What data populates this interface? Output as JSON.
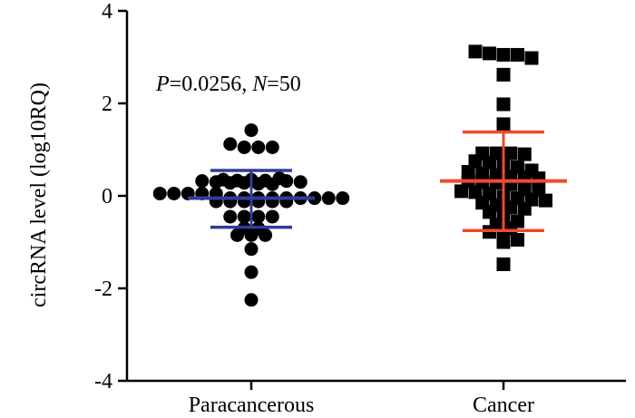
{
  "chart_data": {
    "type": "scatter",
    "subtype": "dot-plot-with-mean-and-sd",
    "ylabel": "circRNA level (log10RQ)",
    "ylim": [
      -4,
      4
    ],
    "yticks": [
      {
        "value": 4,
        "label": "4"
      },
      {
        "value": 2,
        "label": "2"
      },
      {
        "value": 0,
        "label": "0"
      },
      {
        "value": -2,
        "label": "-2"
      },
      {
        "value": -4,
        "label": "-4"
      }
    ],
    "annotation": {
      "p_label": "P",
      "p_value": "=0.0256, ",
      "n_label": "N",
      "n_value": "=50"
    },
    "groups": [
      {
        "name": "Paracancerous",
        "marker": "circle",
        "marker_color": "#000000",
        "summary_color": "#2e3d9a",
        "mean": -0.05,
        "sd_upper": 0.55,
        "sd_lower": -0.68,
        "points": [
          1.42,
          1.12,
          1.05,
          1.05,
          1.05,
          0.35,
          0.33,
          0.32,
          0.3,
          0.28,
          0.28,
          0.26,
          0.25,
          0.35,
          0.33,
          0.32,
          0.3,
          0.38,
          0.05,
          0.05,
          0.05,
          0.05,
          0.05,
          -0.05,
          -0.05,
          -0.05,
          -0.05,
          -0.05,
          -0.05,
          -0.05,
          -0.05,
          -0.05,
          -0.12,
          -0.12,
          -0.12,
          -0.12,
          -0.12,
          -0.12,
          -0.45,
          -0.45,
          -0.45,
          -0.45,
          -0.7,
          -0.7,
          -0.85,
          -0.85,
          -0.85,
          -1.15,
          -1.65,
          -2.25
        ]
      },
      {
        "name": "Cancer",
        "marker": "square",
        "marker_color": "#000000",
        "summary_color": "#ee4b2b",
        "mean": 0.32,
        "sd_upper": 1.38,
        "sd_lower": -0.75,
        "points": [
          3.12,
          3.08,
          3.05,
          3.05,
          2.98,
          2.62,
          1.98,
          1.55,
          0.92,
          0.92,
          0.92,
          0.9,
          0.75,
          0.72,
          0.65,
          0.62,
          0.55,
          0.52,
          0.48,
          0.45,
          0.42,
          0.4,
          0.38,
          0.32,
          0.3,
          0.28,
          0.25,
          0.15,
          0.12,
          0.1,
          0.08,
          0.05,
          -0.02,
          -0.05,
          -0.08,
          -0.1,
          -0.15,
          -0.2,
          -0.25,
          -0.28,
          -0.35,
          -0.45,
          -0.55,
          -0.62,
          -0.7,
          -0.78,
          -0.88,
          -0.95,
          -1.0,
          -1.48
        ]
      }
    ]
  }
}
